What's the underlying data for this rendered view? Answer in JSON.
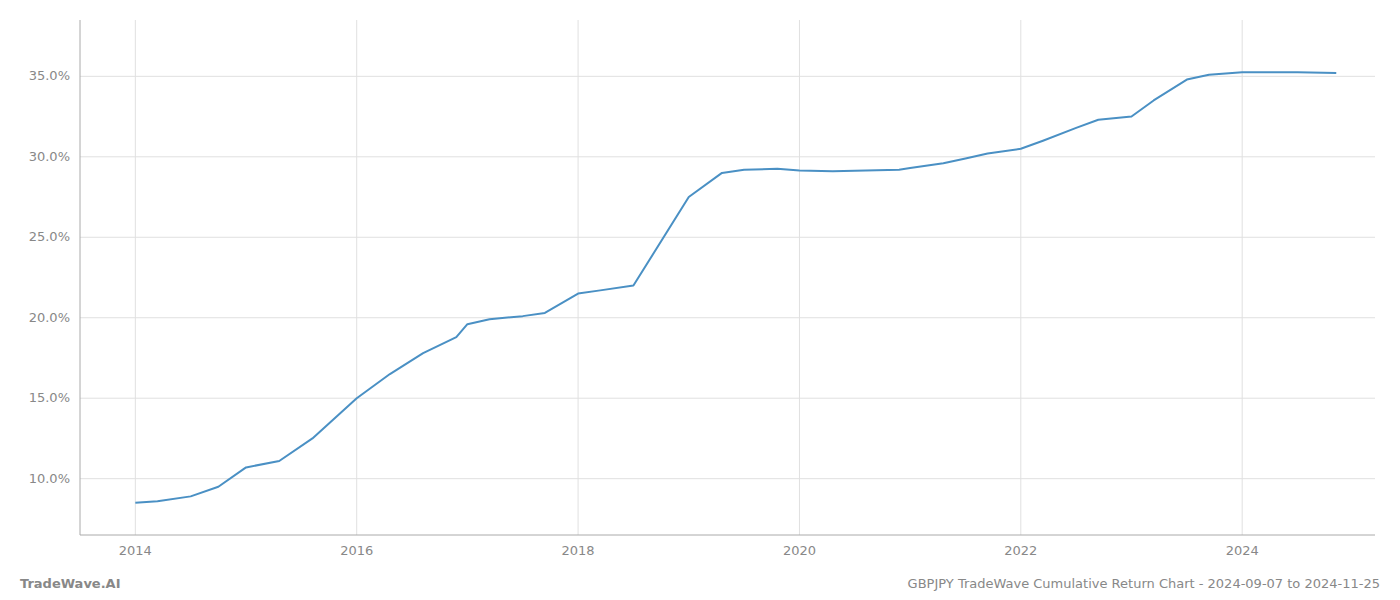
{
  "chart_data": {
    "type": "line",
    "title": "GBPJPY TradeWave Cumulative Return Chart - 2024-09-07 to 2024-11-25",
    "annotations": [
      "TradeWave.AI"
    ],
    "color": "#4a90c4",
    "grid": true,
    "x": [
      2014.0,
      2014.2,
      2014.5,
      2014.75,
      2015.0,
      2015.3,
      2015.6,
      2016.0,
      2016.3,
      2016.6,
      2016.9,
      2017.0,
      2017.2,
      2017.5,
      2017.7,
      2018.0,
      2018.2,
      2018.5,
      2019.0,
      2019.3,
      2019.5,
      2019.8,
      2020.0,
      2020.3,
      2020.6,
      2020.9,
      2021.0,
      2021.3,
      2021.5,
      2021.7,
      2022.0,
      2022.2,
      2022.5,
      2022.7,
      2023.0,
      2023.2,
      2023.5,
      2023.7,
      2024.0,
      2024.5,
      2024.85
    ],
    "values": [
      8.5,
      8.6,
      8.9,
      9.5,
      10.7,
      11.1,
      12.5,
      15.0,
      16.5,
      17.8,
      18.8,
      19.6,
      19.9,
      20.1,
      20.3,
      21.5,
      21.7,
      22.0,
      27.5,
      29.0,
      29.2,
      29.25,
      29.15,
      29.1,
      29.15,
      29.2,
      29.3,
      29.6,
      29.9,
      30.2,
      30.5,
      31.0,
      31.8,
      32.3,
      32.5,
      33.5,
      34.8,
      35.1,
      35.25,
      35.25,
      35.2
    ],
    "xlim": [
      2013.5,
      2025.2
    ],
    "ylim": [
      6.5,
      38.5
    ],
    "xticks": [
      2014,
      2016,
      2018,
      2020,
      2022,
      2024
    ],
    "yticks": [
      {
        "value": 10.0,
        "label": "10.0%"
      },
      {
        "value": 15.0,
        "label": "15.0%"
      },
      {
        "value": 20.0,
        "label": "20.0%"
      },
      {
        "value": 25.0,
        "label": "25.0%"
      },
      {
        "value": 30.0,
        "label": "30.0%"
      },
      {
        "value": 35.0,
        "label": "35.0%"
      }
    ]
  }
}
